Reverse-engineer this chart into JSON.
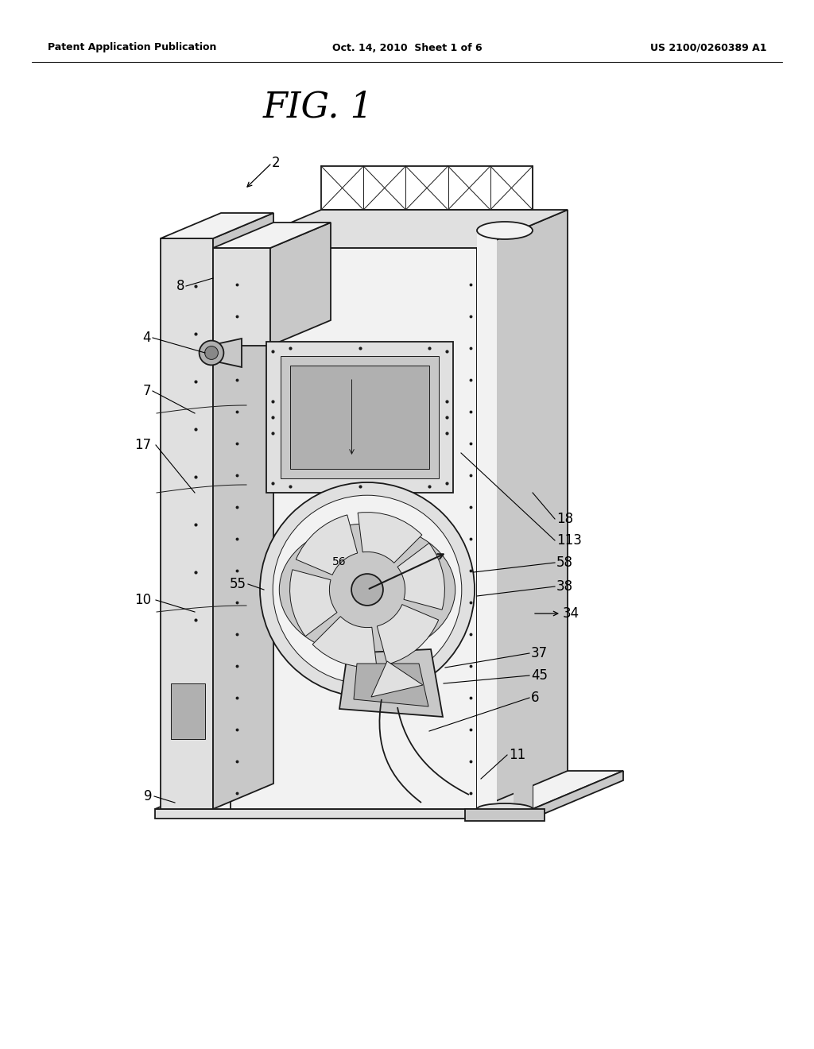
{
  "background_color": "#ffffff",
  "header_left": "Patent Application Publication",
  "header_mid": "Oct. 14, 2010  Sheet 1 of 6",
  "header_right": "US 2100/0260389 A1",
  "fig_title": "FIG. 1",
  "line_color": "#1a1a1a",
  "lw_main": 1.3,
  "lw_thin": 0.7,
  "text_color": "#000000",
  "face_light": "#f2f2f2",
  "face_mid": "#e0e0e0",
  "face_dark": "#c8c8c8",
  "face_very_dark": "#b0b0b0"
}
